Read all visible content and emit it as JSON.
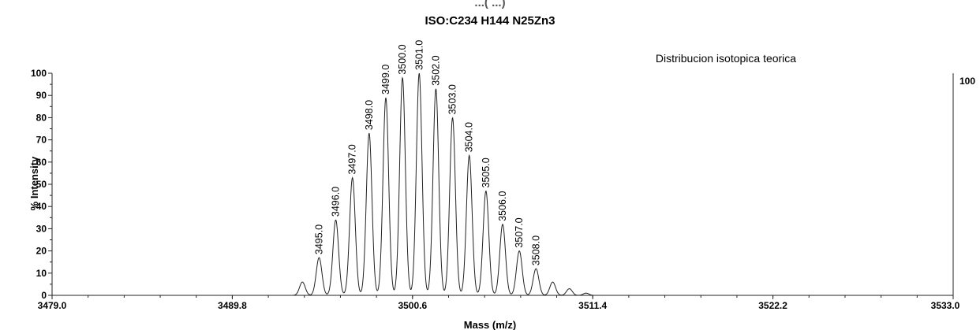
{
  "chart_data": {
    "type": "line",
    "title_partial": "...(  ...)",
    "title": "ISO:C234 H144 N25Zn3",
    "annotation": "Distribucion isotopica teorica",
    "xlabel": "Mass (m/z)",
    "ylabel": "% Intensity",
    "xlim": [
      3479.0,
      3533.0
    ],
    "ylim": [
      0,
      100
    ],
    "x_ticks": [
      "3479.0",
      "3489.8",
      "3500.6",
      "3511.4",
      "3522.2",
      "3533.0"
    ],
    "y_ticks": [
      "0",
      "10",
      "20",
      "30",
      "40",
      "50",
      "60",
      "70",
      "80",
      "90",
      "100"
    ],
    "right_axis_label": "100",
    "peaks": [
      {
        "x": 3494.0,
        "y": 6
      },
      {
        "x": 3495.0,
        "y": 17,
        "label": "3495.0"
      },
      {
        "x": 3496.0,
        "y": 34,
        "label": "3496.0"
      },
      {
        "x": 3497.0,
        "y": 53,
        "label": "3497.0"
      },
      {
        "x": 3498.0,
        "y": 73,
        "label": "3498.0"
      },
      {
        "x": 3499.0,
        "y": 89,
        "label": "3499.0"
      },
      {
        "x": 3500.0,
        "y": 98,
        "label": "3500.0"
      },
      {
        "x": 3501.0,
        "y": 100,
        "label": "3501.0"
      },
      {
        "x": 3502.0,
        "y": 93,
        "label": "3502.0"
      },
      {
        "x": 3503.0,
        "y": 80,
        "label": "3503.0"
      },
      {
        "x": 3504.0,
        "y": 63,
        "label": "3504.0"
      },
      {
        "x": 3505.0,
        "y": 47,
        "label": "3505.0"
      },
      {
        "x": 3506.0,
        "y": 32,
        "label": "3506.0"
      },
      {
        "x": 3507.0,
        "y": 20,
        "label": "3507.0"
      },
      {
        "x": 3508.0,
        "y": 12,
        "label": "3508.0"
      },
      {
        "x": 3509.0,
        "y": 6
      },
      {
        "x": 3510.0,
        "y": 3
      },
      {
        "x": 3511.0,
        "y": 1
      }
    ]
  }
}
